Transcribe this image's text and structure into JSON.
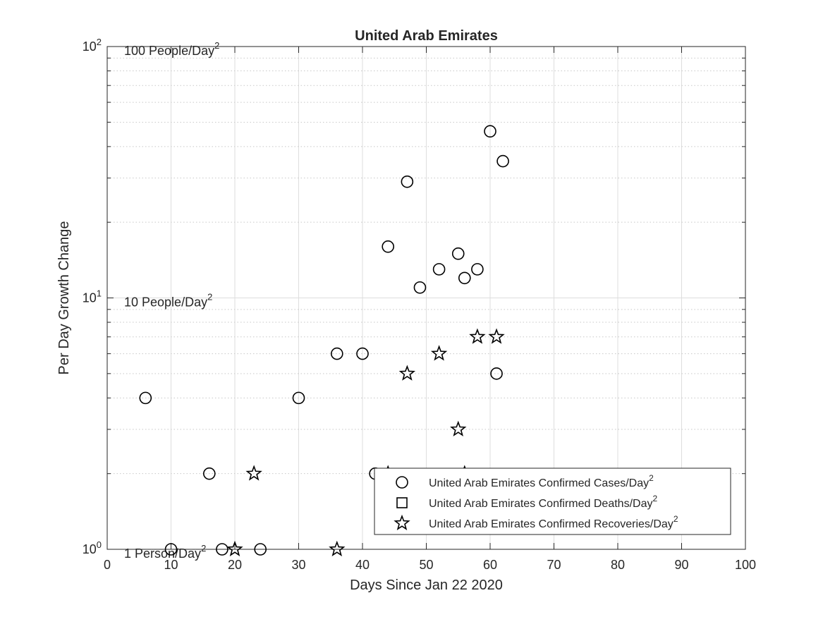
{
  "chart_data": {
    "type": "scatter",
    "title": "United Arab Emirates",
    "xlabel": "Days Since Jan 22 2020",
    "ylabel": "Per Day Growth Change",
    "xlim": [
      0,
      100
    ],
    "ylim": [
      1,
      100
    ],
    "yscale": "log",
    "grid": true,
    "x_ticks": [
      0,
      10,
      20,
      30,
      40,
      50,
      60,
      70,
      80,
      90,
      100
    ],
    "y_ticks": [
      {
        "value": 1,
        "base": "10",
        "exp": "0"
      },
      {
        "value": 10,
        "base": "10",
        "exp": "1"
      },
      {
        "value": 100,
        "base": "10",
        "exp": "2"
      }
    ],
    "reference_labels": [
      {
        "value": 100,
        "text": "100 People/Day",
        "sup": "2"
      },
      {
        "value": 10,
        "text": "10 People/Day",
        "sup": "2"
      },
      {
        "value": 1,
        "text": "1 Person/Day",
        "sup": "2"
      }
    ],
    "legend_position": "bottom-right",
    "series": [
      {
        "name": "United Arab Emirates Confirmed Cases/Day",
        "name_sup": "2",
        "marker": "circle",
        "x": [
          6,
          10,
          16,
          18,
          24,
          30,
          36,
          40,
          42,
          44,
          47,
          49,
          52,
          55,
          56,
          58,
          60,
          61,
          62
        ],
        "y": [
          4,
          1,
          2,
          1,
          1,
          4,
          6,
          6,
          2,
          16,
          29,
          11,
          13,
          15,
          12,
          13,
          46,
          5,
          35
        ]
      },
      {
        "name": "United Arab Emirates Confirmed Deaths/Day",
        "name_sup": "2",
        "marker": "square",
        "x": [],
        "y": []
      },
      {
        "name": "United Arab Emirates Confirmed Recoveries/Day",
        "name_sup": "2",
        "marker": "star",
        "x": [
          20,
          23,
          36,
          44,
          47,
          52,
          55,
          56,
          58,
          61
        ],
        "y": [
          1,
          2,
          1,
          2,
          5,
          6,
          3,
          2,
          7,
          7
        ]
      }
    ]
  }
}
